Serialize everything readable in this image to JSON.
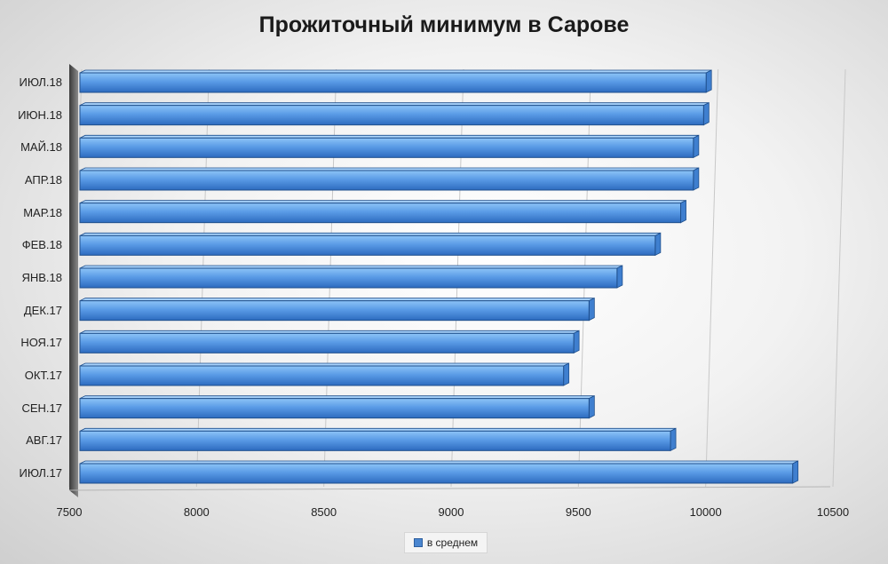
{
  "chart_data": {
    "type": "bar",
    "orientation": "horizontal",
    "title": "Прожиточный минимум в Сарове",
    "categories": [
      "ИЮЛ.17",
      "АВГ.17",
      "СЕН.17",
      "ОКТ.17",
      "НОЯ.17",
      "ДЕК.17",
      "ЯНВ.18",
      "ФЕВ.18",
      "МАР.18",
      "АПР.18",
      "МАЙ.18",
      "ИЮН.18",
      "ИЮЛ.18"
    ],
    "series": [
      {
        "name": "в среднем",
        "values": [
          10300,
          9820,
          9500,
          9400,
          9440,
          9500,
          9610,
          9760,
          9860,
          9910,
          9910,
          9950,
          9960
        ]
      }
    ],
    "xlim": [
      7500,
      10500
    ],
    "xticks": [
      7500,
      8000,
      8500,
      9000,
      9500,
      10000,
      10500
    ],
    "xlabel": "",
    "ylabel": "",
    "grid": true,
    "legend_position": "bottom",
    "colors": {
      "bar_top": "#8dc4f7",
      "bar_mid": "#5a9be6",
      "bar_bottom": "#2d6bbf",
      "bar_edge": "#1f4f8c",
      "grid": "#c8c8c8"
    }
  }
}
